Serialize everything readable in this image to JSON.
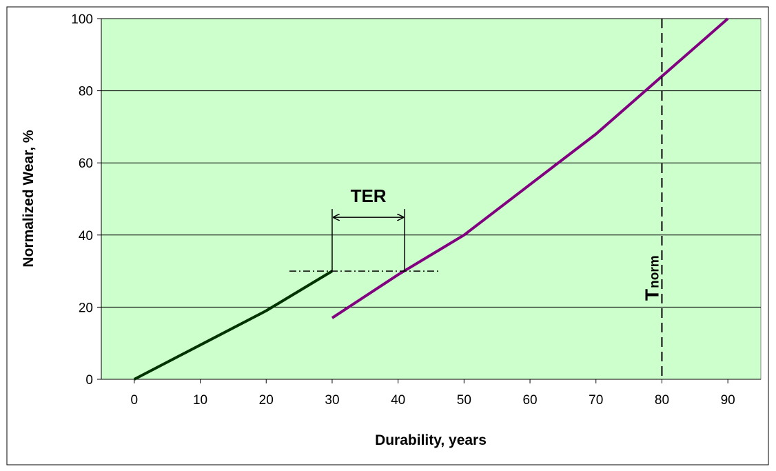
{
  "chart_data": {
    "type": "line",
    "xlabel": "Durability, years",
    "ylabel": "Normalized Wear, %",
    "xlim": [
      -5,
      95
    ],
    "xticks": [
      0,
      10,
      20,
      30,
      40,
      50,
      60,
      70,
      80,
      90
    ],
    "ylim": [
      0,
      100
    ],
    "yticks": [
      0,
      20,
      40,
      60,
      80,
      100
    ],
    "grid": true,
    "series": [
      {
        "color": "#003300",
        "x": [
          0,
          10,
          20,
          30
        ],
        "values": [
          0,
          9.5,
          19,
          30
        ]
      },
      {
        "color": "#800080",
        "x": [
          30,
          40,
          50,
          60,
          70,
          80,
          90
        ],
        "values": [
          17,
          29,
          40,
          54,
          68,
          84,
          100
        ]
      }
    ],
    "annotations": [
      {
        "kind": "interval",
        "label": "TER",
        "x": [
          30,
          41
        ],
        "y": 30
      },
      {
        "kind": "vline",
        "label": "T",
        "sublabel": "norm",
        "x": 80
      }
    ]
  }
}
